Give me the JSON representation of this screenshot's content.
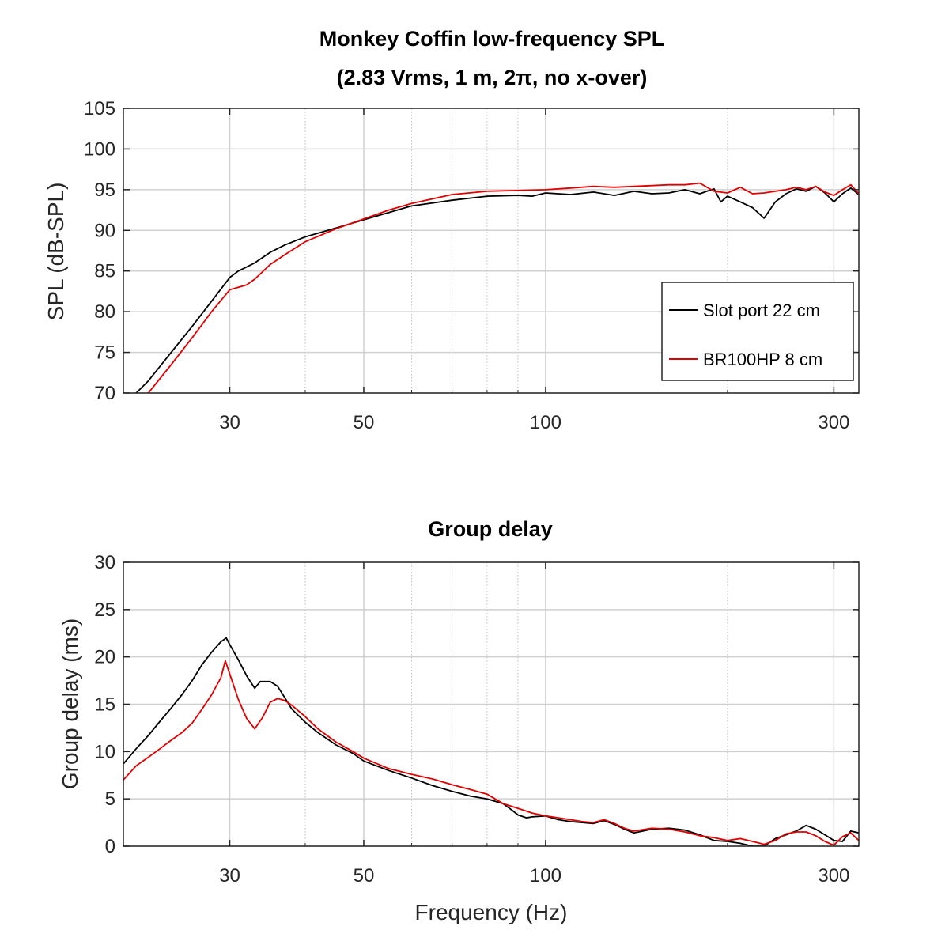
{
  "colors": {
    "series1": "#000000",
    "series2": "#e00000",
    "grid": "#d0d0d0",
    "axis": "#262626"
  },
  "chart_data": [
    {
      "type": "line",
      "title": "Monkey Coffin low-frequency SPL",
      "subtitle": "(2.83 Vrms, 1 m, 2π, no x-over)",
      "xlabel": "",
      "ylabel": "SPL (dB-SPL)",
      "xscale": "log",
      "xlim": [
        20,
        330
      ],
      "ylim": [
        70,
        105
      ],
      "xticks": [
        "30",
        "50",
        "100",
        "300"
      ],
      "yticks": [
        "70",
        "75",
        "80",
        "85",
        "90",
        "95",
        "100",
        "105"
      ],
      "grid": true,
      "legend": "right, lower half",
      "series": [
        {
          "name": "Slot port 22 cm",
          "color": "#000000",
          "points": [
            [
              21,
              70
            ],
            [
              22,
              71.5
            ],
            [
              24,
              75
            ],
            [
              26,
              78.2
            ],
            [
              28,
              81.3
            ],
            [
              30,
              84.2
            ],
            [
              31,
              85
            ],
            [
              32,
              85.5
            ],
            [
              33,
              86
            ],
            [
              35,
              87.3
            ],
            [
              37,
              88.2
            ],
            [
              40,
              89.2
            ],
            [
              45,
              90.3
            ],
            [
              50,
              91.3
            ],
            [
              55,
              92.2
            ],
            [
              60,
              93
            ],
            [
              70,
              93.7
            ],
            [
              80,
              94.2
            ],
            [
              90,
              94.3
            ],
            [
              95,
              94.2
            ],
            [
              100,
              94.6
            ],
            [
              110,
              94.4
            ],
            [
              120,
              94.7
            ],
            [
              130,
              94.3
            ],
            [
              140,
              94.8
            ],
            [
              150,
              94.5
            ],
            [
              160,
              94.6
            ],
            [
              170,
              95
            ],
            [
              180,
              94.5
            ],
            [
              190,
              95.1
            ],
            [
              195,
              93.5
            ],
            [
              200,
              94.2
            ],
            [
              210,
              93.5
            ],
            [
              220,
              92.8
            ],
            [
              230,
              91.5
            ],
            [
              240,
              93.5
            ],
            [
              250,
              94.5
            ],
            [
              260,
              95.1
            ],
            [
              270,
              94.8
            ],
            [
              280,
              95.4
            ],
            [
              290,
              94.6
            ],
            [
              300,
              93.5
            ],
            [
              310,
              94.5
            ],
            [
              320,
              95.2
            ],
            [
              330,
              94.4
            ]
          ]
        },
        {
          "name": "BR100HP 8 cm",
          "color": "#e00000",
          "points": [
            [
              22,
              70
            ],
            [
              24,
              73.5
            ],
            [
              26,
              76.8
            ],
            [
              28,
              80
            ],
            [
              30,
              82.7
            ],
            [
              32,
              83.3
            ],
            [
              33,
              84
            ],
            [
              35,
              85.8
            ],
            [
              37,
              87
            ],
            [
              40,
              88.6
            ],
            [
              45,
              90.2
            ],
            [
              50,
              91.4
            ],
            [
              55,
              92.5
            ],
            [
              60,
              93.3
            ],
            [
              70,
              94.4
            ],
            [
              80,
              94.8
            ],
            [
              90,
              94.9
            ],
            [
              100,
              95
            ],
            [
              110,
              95.2
            ],
            [
              120,
              95.4
            ],
            [
              130,
              95.3
            ],
            [
              140,
              95.4
            ],
            [
              150,
              95.5
            ],
            [
              160,
              95.6
            ],
            [
              170,
              95.6
            ],
            [
              180,
              95.8
            ],
            [
              190,
              94.8
            ],
            [
              200,
              94.6
            ],
            [
              210,
              95.3
            ],
            [
              220,
              94.5
            ],
            [
              230,
              94.6
            ],
            [
              240,
              94.8
            ],
            [
              250,
              95
            ],
            [
              260,
              95.3
            ],
            [
              270,
              95
            ],
            [
              280,
              95.4
            ],
            [
              290,
              94.7
            ],
            [
              300,
              94.3
            ],
            [
              310,
              95
            ],
            [
              320,
              95.6
            ],
            [
              330,
              94.5
            ]
          ]
        }
      ]
    },
    {
      "type": "line",
      "title": "Group delay",
      "xlabel": "Frequency (Hz)",
      "ylabel": "Group delay (ms)",
      "xscale": "log",
      "xlim": [
        20,
        330
      ],
      "ylim": [
        0,
        30
      ],
      "xticks": [
        "30",
        "50",
        "100",
        "300"
      ],
      "yticks": [
        "0",
        "5",
        "10",
        "15",
        "20",
        "25",
        "30"
      ],
      "grid": true,
      "series": [
        {
          "name": "Slot port 22 cm",
          "color": "#000000",
          "points": [
            [
              20,
              8.7
            ],
            [
              21,
              10.3
            ],
            [
              22,
              11.7
            ],
            [
              23,
              13.2
            ],
            [
              24,
              14.6
            ],
            [
              25,
              16
            ],
            [
              26,
              17.5
            ],
            [
              27,
              19.2
            ],
            [
              28,
              20.5
            ],
            [
              29,
              21.6
            ],
            [
              29.6,
              22
            ],
            [
              30,
              21.3
            ],
            [
              31,
              19.7
            ],
            [
              32,
              18
            ],
            [
              33,
              16.7
            ],
            [
              33.7,
              17.4
            ],
            [
              35,
              17.4
            ],
            [
              36,
              16.9
            ],
            [
              37,
              15.7
            ],
            [
              38,
              14.5
            ],
            [
              40,
              13.1
            ],
            [
              42,
              12
            ],
            [
              45,
              10.7
            ],
            [
              48,
              9.8
            ],
            [
              50,
              9
            ],
            [
              55,
              8
            ],
            [
              60,
              7.2
            ],
            [
              65,
              6.4
            ],
            [
              70,
              5.8
            ],
            [
              75,
              5.3
            ],
            [
              80,
              5
            ],
            [
              85,
              4.5
            ],
            [
              88,
              3.8
            ],
            [
              90,
              3.3
            ],
            [
              93,
              3
            ],
            [
              95,
              3.1
            ],
            [
              100,
              3.2
            ],
            [
              105,
              2.8
            ],
            [
              110,
              2.6
            ],
            [
              115,
              2.5
            ],
            [
              120,
              2.4
            ],
            [
              125,
              2.7
            ],
            [
              130,
              2.3
            ],
            [
              135,
              1.8
            ],
            [
              140,
              1.4
            ],
            [
              150,
              1.8
            ],
            [
              160,
              1.9
            ],
            [
              170,
              1.7
            ],
            [
              180,
              1.2
            ],
            [
              190,
              0.6
            ],
            [
              200,
              0.5
            ],
            [
              210,
              0.3
            ],
            [
              220,
              0
            ],
            [
              230,
              0
            ],
            [
              240,
              0.8
            ],
            [
              250,
              1.2
            ],
            [
              260,
              1.6
            ],
            [
              270,
              2.2
            ],
            [
              280,
              1.8
            ],
            [
              290,
              1.2
            ],
            [
              300,
              0.6
            ],
            [
              310,
              0.5
            ],
            [
              320,
              1.6
            ],
            [
              330,
              1.4
            ]
          ]
        },
        {
          "name": "BR100HP 8 cm",
          "color": "#e00000",
          "points": [
            [
              20,
              7
            ],
            [
              21,
              8.5
            ],
            [
              22,
              9.4
            ],
            [
              23,
              10.3
            ],
            [
              24,
              11.2
            ],
            [
              25,
              12
            ],
            [
              26,
              13
            ],
            [
              27,
              14.5
            ],
            [
              28,
              16
            ],
            [
              29,
              17.8
            ],
            [
              29.5,
              19.6
            ],
            [
              30,
              18.2
            ],
            [
              31,
              15.5
            ],
            [
              32,
              13.5
            ],
            [
              33,
              12.4
            ],
            [
              34,
              13.6
            ],
            [
              35,
              15.2
            ],
            [
              36,
              15.6
            ],
            [
              37,
              15.4
            ],
            [
              38,
              14.9
            ],
            [
              40,
              13.7
            ],
            [
              42,
              12.4
            ],
            [
              45,
              11
            ],
            [
              48,
              10
            ],
            [
              50,
              9.3
            ],
            [
              55,
              8.2
            ],
            [
              60,
              7.6
            ],
            [
              65,
              7.1
            ],
            [
              70,
              6.5
            ],
            [
              75,
              6
            ],
            [
              80,
              5.5
            ],
            [
              85,
              4.5
            ],
            [
              90,
              4
            ],
            [
              95,
              3.5
            ],
            [
              100,
              3.2
            ],
            [
              105,
              3
            ],
            [
              110,
              2.8
            ],
            [
              115,
              2.6
            ],
            [
              120,
              2.5
            ],
            [
              125,
              2.8
            ],
            [
              130,
              2.4
            ],
            [
              135,
              1.9
            ],
            [
              140,
              1.6
            ],
            [
              150,
              1.9
            ],
            [
              160,
              1.8
            ],
            [
              170,
              1.5
            ],
            [
              180,
              1.1
            ],
            [
              190,
              0.9
            ],
            [
              200,
              0.6
            ],
            [
              210,
              0.8
            ],
            [
              220,
              0.5
            ],
            [
              230,
              0.2
            ],
            [
              240,
              0.6
            ],
            [
              250,
              1.3
            ],
            [
              260,
              1.5
            ],
            [
              270,
              1.5
            ],
            [
              280,
              1.1
            ],
            [
              290,
              0.5
            ],
            [
              300,
              0.1
            ],
            [
              310,
              1
            ],
            [
              320,
              1.4
            ],
            [
              330,
              0.6
            ]
          ]
        }
      ]
    }
  ]
}
